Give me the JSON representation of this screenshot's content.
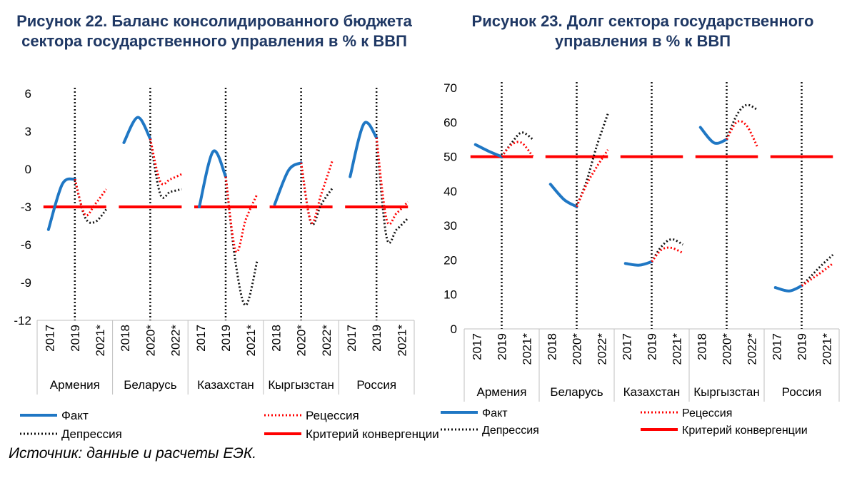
{
  "figure1_title": "Рисунок 22. Баланс консолидированного бюджета сектора государственного управления в % к ВВП",
  "figure2_title": "Рисунок 23. Долг сектора государственного управления в % к ВВП",
  "source": "Источник: данные и расчеты ЕЭК.",
  "legend": {
    "fact": "Факт",
    "recession": "Рецессия",
    "depression": "Депрессия",
    "criterion": "Критерий конвергенции"
  },
  "colors": {
    "fact": "#1f77c4",
    "recession": "#ff0000",
    "depression": "#111111",
    "criterion": "#ff0000",
    "title": "#1f3864"
  },
  "chart_data": [
    {
      "type": "line",
      "title": "Рисунок 22. Баланс консолидированного бюджета сектора государственного управления в % к ВВП",
      "ylim": [
        -12,
        6
      ],
      "yticks": [
        6,
        3,
        0,
        -3,
        -6,
        -9,
        -12
      ],
      "years": [
        "2017",
        "2018",
        "2019",
        "2020*",
        "2021*",
        "2022*"
      ],
      "groups": [
        {
          "name": "Армения",
          "ticks": [
            "2017",
            "2019",
            "2021*"
          ],
          "fact": [
            -4.8,
            -1.2,
            -0.8
          ],
          "recession": [
            -3.6,
            -2.8,
            -1.6
          ],
          "depression": [
            -3.8,
            -4.2,
            -3.2
          ],
          "criterion": -3
        },
        {
          "name": "Беларусь",
          "ticks": [
            "2018",
            "2020*",
            "2022*"
          ],
          "fact": [
            2.1,
            4.1,
            2.4
          ],
          "recession": [
            -1.0,
            -0.8,
            -0.4
          ],
          "depression": [
            -2.0,
            -1.8,
            -1.6
          ],
          "criterion": -3
        },
        {
          "name": "Казахстан",
          "ticks": [
            "2017",
            "2019",
            "2021*"
          ],
          "fact": [
            -3.0,
            1.4,
            -0.6
          ],
          "recession": [
            -6.5,
            -4.0,
            -2.0
          ],
          "depression": [
            -7.5,
            -10.8,
            -7.3
          ],
          "criterion": -3
        },
        {
          "name": "Кыргызстан",
          "ticks": [
            "2018",
            "2020*",
            "2022*"
          ],
          "fact": [
            -2.8,
            -0.1,
            0.5
          ],
          "recession": [
            -4.2,
            -2.0,
            0.7
          ],
          "depression": [
            -4.3,
            -2.8,
            -1.5
          ],
          "criterion": -3
        },
        {
          "name": "Россия",
          "ticks": [
            "2017",
            "2019",
            "2021*"
          ],
          "fact": [
            -0.6,
            3.6,
            2.5
          ],
          "recession": [
            -4.0,
            -3.5,
            -2.6
          ],
          "depression": [
            -5.4,
            -4.8,
            -3.9
          ],
          "criterion": -3
        }
      ]
    },
    {
      "type": "line",
      "title": "Рисунок 23. Долг сектора государственного управления в % к ВВП",
      "ylim": [
        0,
        70
      ],
      "yticks": [
        70,
        60,
        50,
        40,
        30,
        20,
        10,
        0
      ],
      "years": [
        "2017",
        "2018",
        "2019",
        "2020*",
        "2021*",
        "2022*"
      ],
      "groups": [
        {
          "name": "Армения",
          "ticks": [
            "2017",
            "2019",
            "2021*"
          ],
          "fact": [
            53.5,
            51.5,
            50.0
          ],
          "recession": [
            53.5,
            54.0,
            50.0
          ],
          "depression": [
            54.0,
            57.0,
            55.0
          ],
          "criterion": 50
        },
        {
          "name": "Беларусь",
          "ticks": [
            "2018",
            "2020*",
            "2022*"
          ],
          "fact": [
            42.0,
            37.5,
            35.5
          ],
          "recession": [
            42.0,
            47.0,
            52.0
          ],
          "depression": [
            43.0,
            53.0,
            62.5
          ],
          "criterion": 50
        },
        {
          "name": "Казахстан",
          "ticks": [
            "2017",
            "2019",
            "2021*"
          ],
          "fact": [
            19.0,
            18.5,
            19.5
          ],
          "recession": [
            23.0,
            23.5,
            22.0
          ],
          "depression": [
            24.0,
            26.0,
            24.5
          ],
          "criterion": 50
        },
        {
          "name": "Кыргызстан",
          "ticks": [
            "2018",
            "2020*",
            "2022*"
          ],
          "fact": [
            58.5,
            54.0,
            55.0
          ],
          "recession": [
            60.0,
            59.0,
            52.5
          ],
          "depression": [
            62.0,
            65.0,
            63.5
          ],
          "criterion": 50
        },
        {
          "name": "Россия",
          "ticks": [
            "2017",
            "2019",
            "2021*"
          ],
          "fact": [
            12.0,
            11.0,
            12.5
          ],
          "recession": [
            14.5,
            16.5,
            19.0
          ],
          "depression": [
            15.5,
            18.5,
            21.5
          ],
          "criterion": 50
        }
      ]
    }
  ]
}
